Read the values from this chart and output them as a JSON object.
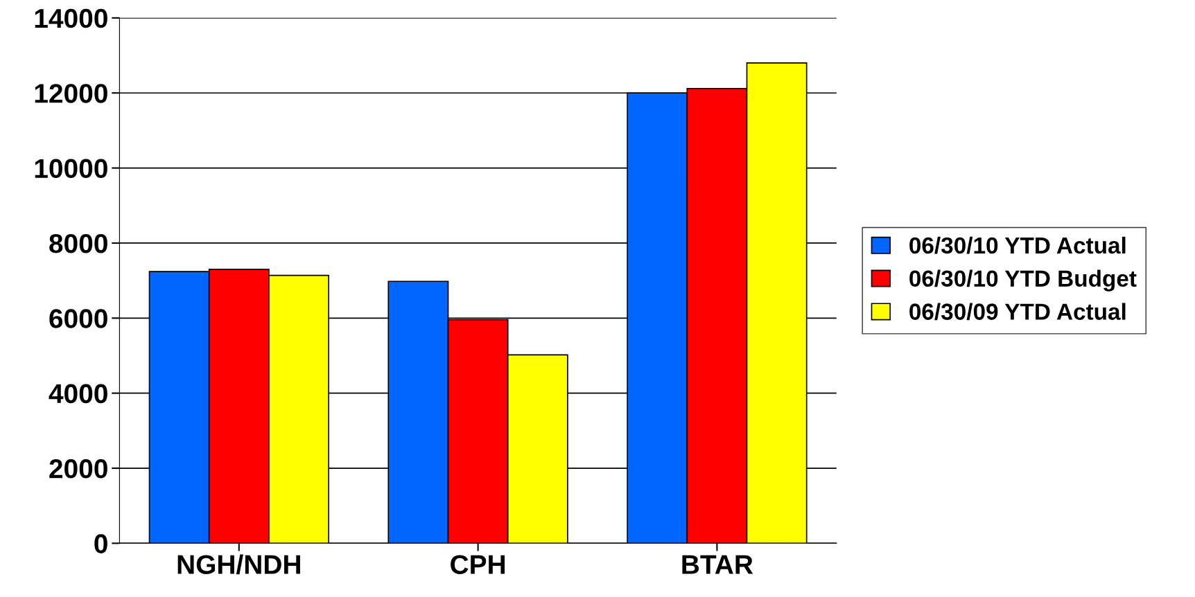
{
  "chart_data": {
    "type": "bar",
    "categories": [
      "NGH/NDH",
      "CPH",
      "BTAR"
    ],
    "series": [
      {
        "name": "06/30/10 YTD Actual",
        "color": "#0066ff",
        "values": [
          7240,
          6980,
          12000
        ]
      },
      {
        "name": "06/30/10 YTD Budget",
        "color": "#ff0000",
        "values": [
          7300,
          5960,
          12120
        ]
      },
      {
        "name": "06/30/09 YTD Actual",
        "color": "#ffff00",
        "values": [
          7140,
          5020,
          12800
        ]
      }
    ],
    "ylim": [
      0,
      14000
    ],
    "yticks": [
      0,
      2000,
      4000,
      6000,
      8000,
      10000,
      12000,
      14000
    ],
    "grid": "y",
    "legend": "right"
  }
}
